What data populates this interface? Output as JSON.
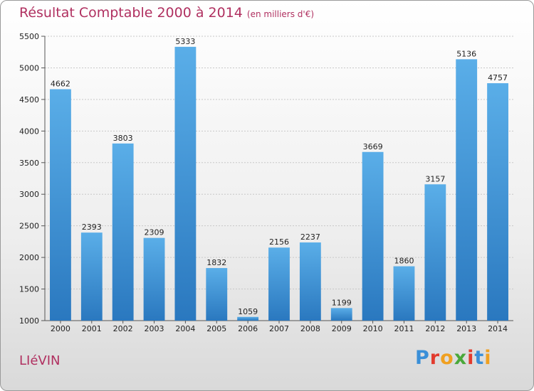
{
  "header": {
    "title": "Résultat Comptable 2000 à 2014",
    "subtitle": "(en milliers d'€)"
  },
  "footer": {
    "city": "LIéVIN",
    "logo_letters": [
      "P",
      "r",
      "o",
      "x",
      "i",
      "t",
      "i"
    ],
    "logo_colors": [
      "#3a8fd8",
      "#e23b2e",
      "#f0a020",
      "#4aa83a",
      "#e23b2e",
      "#3a8fd8",
      "#f0a020"
    ]
  },
  "chart_data": {
    "type": "bar",
    "title": "Résultat Comptable 2000 à 2014",
    "subtitle": "(en milliers d'€)",
    "categories": [
      "2000",
      "2001",
      "2002",
      "2003",
      "2004",
      "2005",
      "2006",
      "2007",
      "2008",
      "2009",
      "2010",
      "2011",
      "2012",
      "2013",
      "2014"
    ],
    "values": [
      4662,
      2393,
      3803,
      2309,
      5333,
      1832,
      1059,
      2156,
      2237,
      1199,
      3669,
      1860,
      3157,
      5136,
      4757
    ],
    "ylim": [
      1000,
      5500
    ],
    "yticks": [
      1000,
      1500,
      2000,
      2500,
      3000,
      3500,
      4000,
      4500,
      5000,
      5500
    ],
    "grid": true,
    "legend": "none",
    "bar_color": "#3d95d8"
  }
}
